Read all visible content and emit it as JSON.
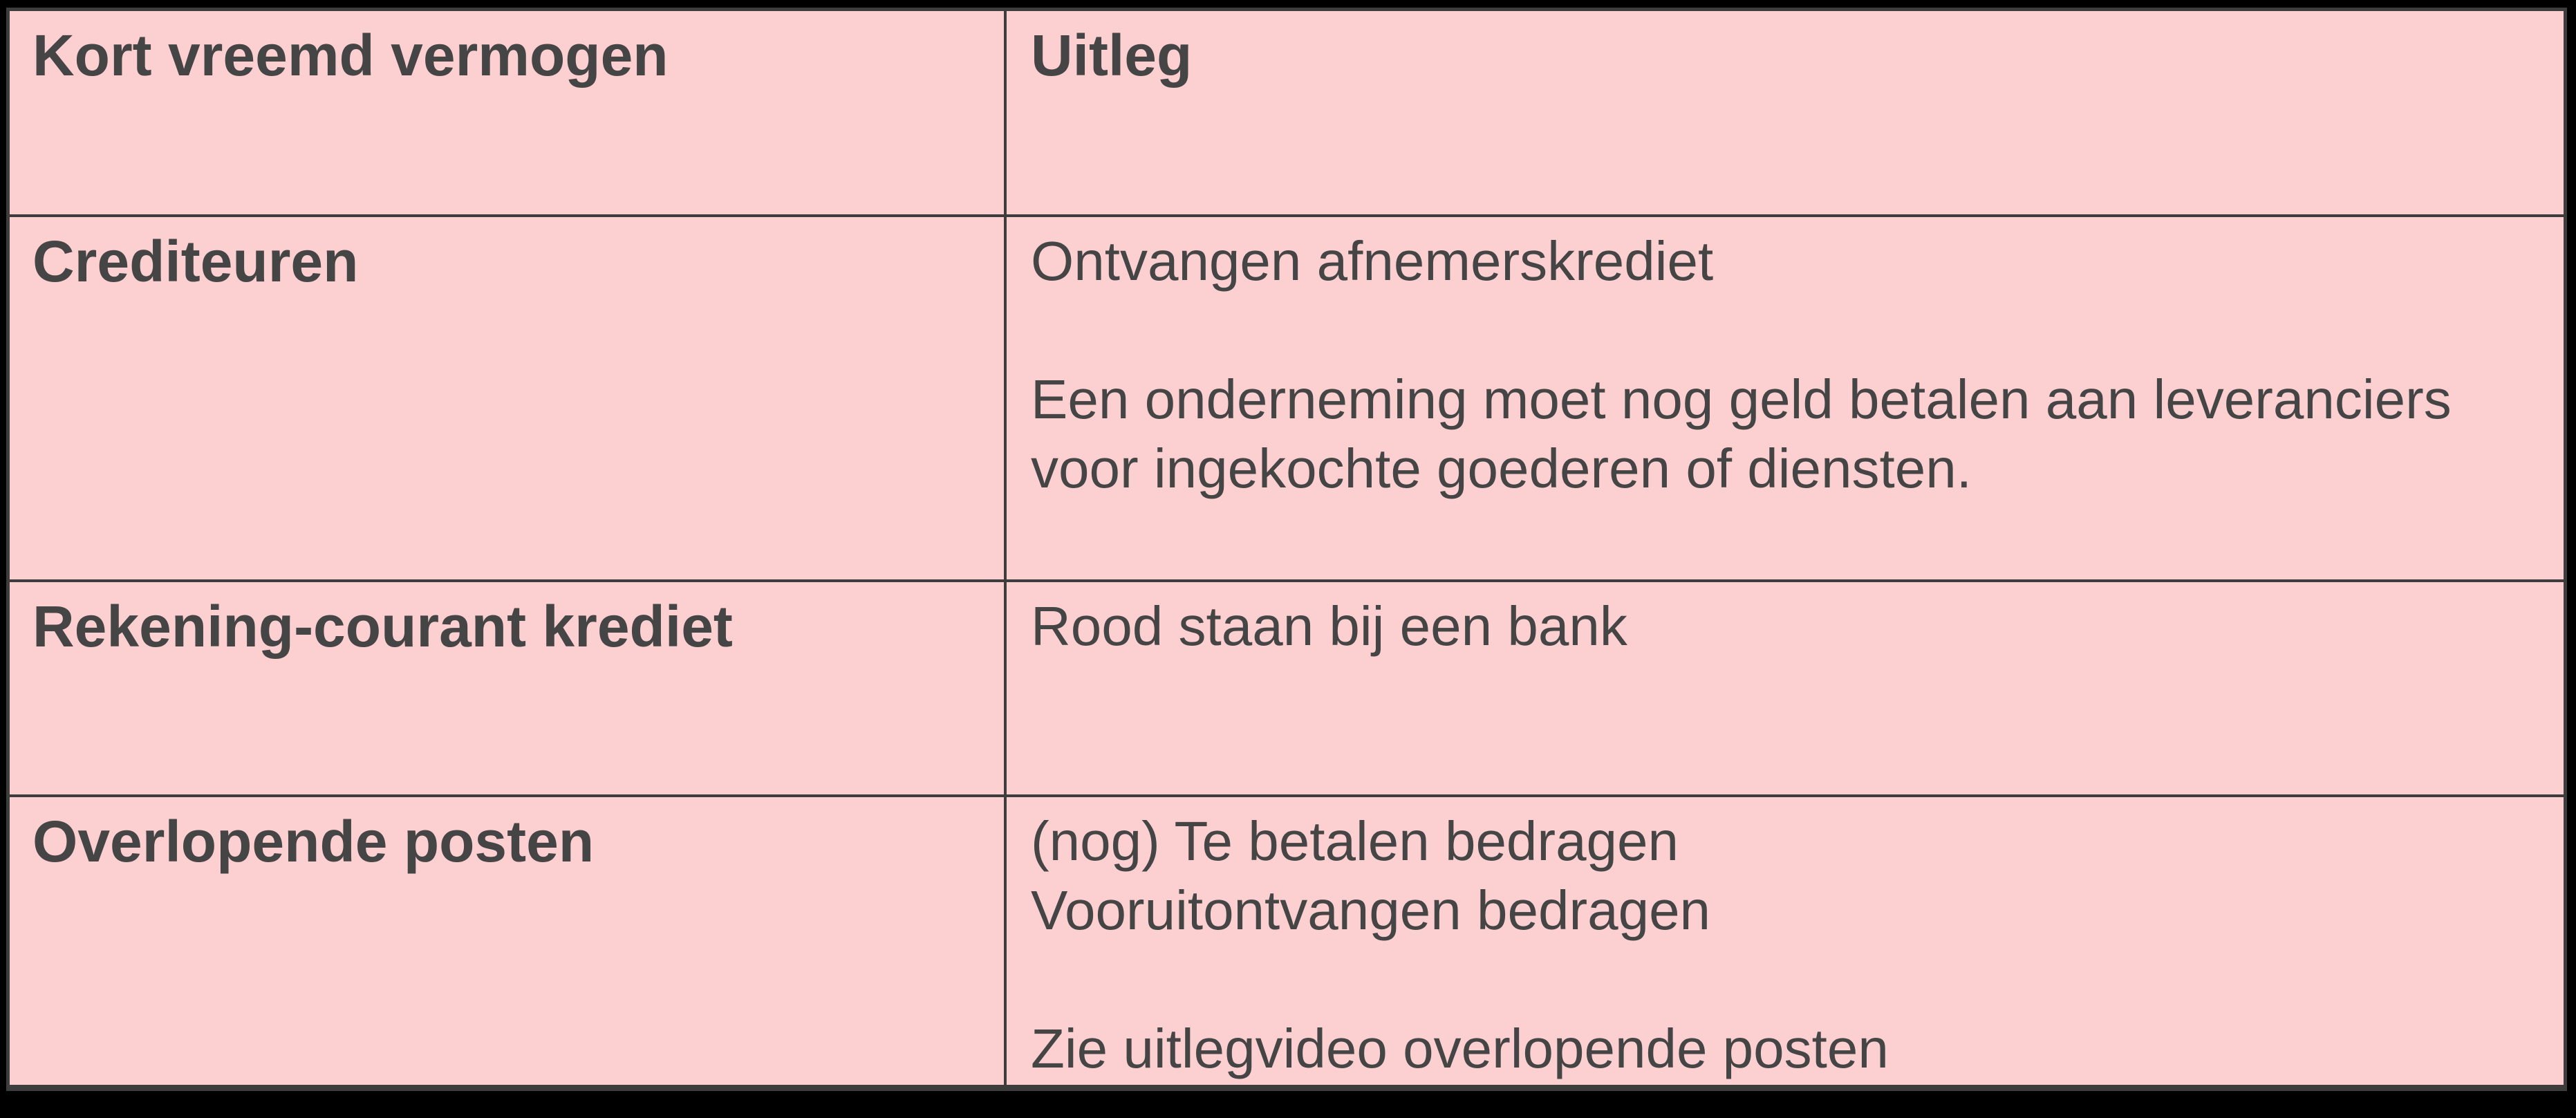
{
  "page": {
    "background_color": "#000000",
    "description": "Tabel kort vreemd vermogen"
  },
  "table": {
    "border_color": "#3d3d3d",
    "header_bg": "#fce8e8",
    "body_bg": "#fccfd0",
    "text_color": "#454545",
    "header": {
      "col1": "Kort vreemd vermogen",
      "col2": "Uitleg"
    },
    "rows": [
      {
        "term": "Crediteuren",
        "uitleg_lines": [
          "Ontvangen afnemerskrediet",
          "",
          "Een onderneming moet nog geld betalen aan leveranciers",
          "voor ingekochte goederen of diensten."
        ]
      },
      {
        "term": "Rekening-courant krediet",
        "uitleg_lines": [
          "Rood staan bij een bank"
        ]
      },
      {
        "term": "Overlopende posten",
        "uitleg_lines": [
          "(nog) Te betalen bedragen",
          "Vooruitontvangen bedragen",
          "",
          "Zie uitlegvideo overlopende posten"
        ]
      }
    ]
  }
}
